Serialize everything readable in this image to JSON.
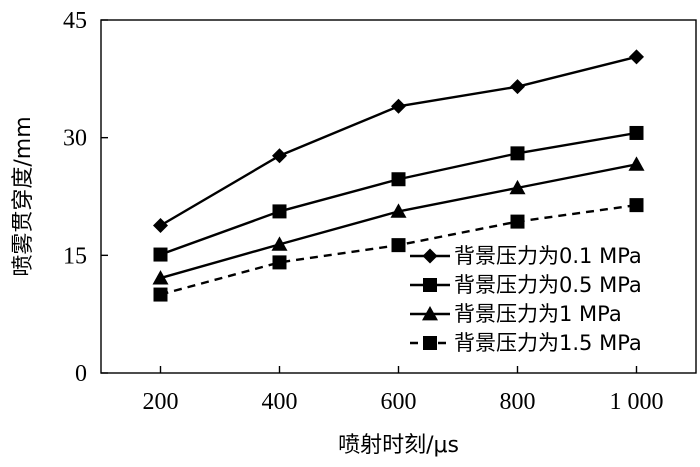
{
  "chart_data": {
    "type": "line",
    "title": "",
    "xlabel": "喷射时刻/μs",
    "ylabel": "喷雾贯穿度/mm",
    "x": [
      200,
      400,
      600,
      800,
      1000
    ],
    "x_tick_labels": [
      "200",
      "400",
      "600",
      "800",
      "1 000"
    ],
    "xlim": [
      100,
      1100
    ],
    "y_ticks": [
      0,
      15,
      30,
      45
    ],
    "y_tick_labels": [
      "0",
      "15",
      "30",
      "45"
    ],
    "ylim": [
      0,
      45
    ],
    "grid": false,
    "legend_position": "bottom-right",
    "series": [
      {
        "name": "背景压力为0.1 MPa",
        "values": [
          18.8,
          27.7,
          34.0,
          36.5,
          40.3
        ],
        "marker": "diamond",
        "line_style": "solid",
        "color": "#000000"
      },
      {
        "name": "背景压力为0.5 MPa",
        "values": [
          15.1,
          20.6,
          24.7,
          28.0,
          30.6
        ],
        "marker": "square",
        "line_style": "solid",
        "color": "#000000"
      },
      {
        "name": "背景压力为1 MPa",
        "values": [
          12.1,
          16.4,
          20.6,
          23.6,
          26.6
        ],
        "marker": "triangle",
        "line_style": "solid",
        "color": "#000000"
      },
      {
        "name": "背景压力为1.5 MPa",
        "values": [
          10.0,
          14.1,
          16.3,
          19.3,
          21.4
        ],
        "marker": "square",
        "line_style": "dashed",
        "color": "#000000"
      }
    ]
  }
}
